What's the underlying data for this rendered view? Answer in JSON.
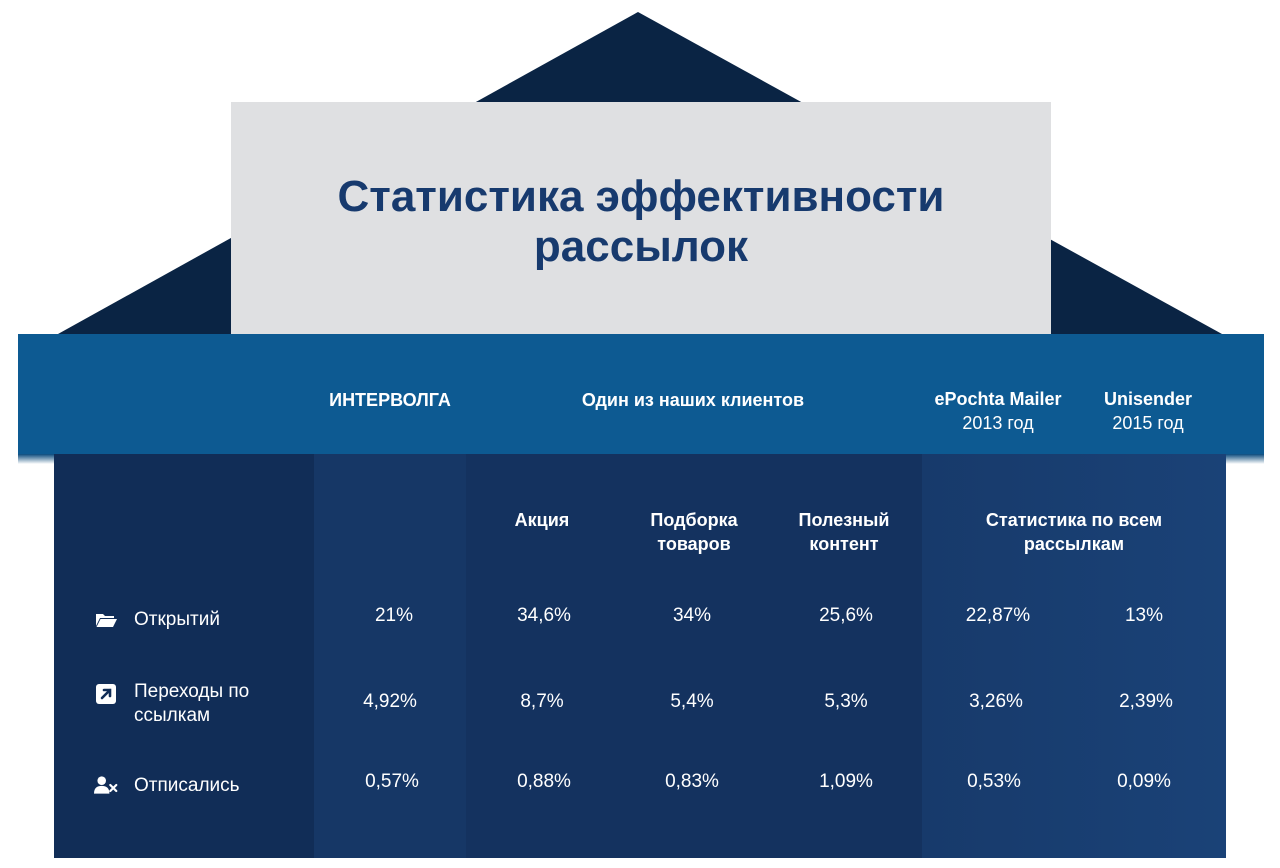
{
  "title": "Статистика эффективности рассылок",
  "header": {
    "col_company": "ИНТЕРВОЛГА",
    "col_client": "Один из наших клиентов",
    "col_epochta_name": "ePochta Mailer",
    "col_epochta_year": "2013 год",
    "col_unisender_name": "Unisender",
    "col_unisender_year": "2015 год"
  },
  "subheaders": {
    "promo": "Акция",
    "selection": "Подборка товаров",
    "useful": "Полезный контент",
    "all_stats": "Статистика по всем рассылкам"
  },
  "rows": [
    {
      "label": "Открытий",
      "icon": "folder-open-icon",
      "values": [
        "21%",
        "34,6%",
        "34%",
        "25,6%",
        "22,87%",
        "13%"
      ]
    },
    {
      "label": "Переходы по ссылкам",
      "icon": "external-link-icon",
      "values": [
        "4,92%",
        "8,7%",
        "5,4%",
        "5,3%",
        "3,26%",
        "2,39%"
      ]
    },
    {
      "label": "Отписались",
      "icon": "user-remove-icon",
      "values": [
        "0,57%",
        "0,88%",
        "0,83%",
        "1,09%",
        "0,53%",
        "0,09%"
      ]
    }
  ],
  "colors": {
    "roof": "#0a2444",
    "band": "#0d5a92",
    "body": "#112d57",
    "title_text": "#173a6e",
    "title_card": "#dfe0e2"
  }
}
